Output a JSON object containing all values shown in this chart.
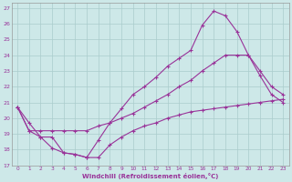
{
  "xlabel": "Windchill (Refroidissement éolien,°C)",
  "bg_color": "#cde8e8",
  "line_color": "#993399",
  "grid_color": "#aacccc",
  "xlim_min": -0.5,
  "xlim_max": 23.5,
  "ylim_min": 17,
  "ylim_max": 27.3,
  "xticks": [
    0,
    1,
    2,
    3,
    4,
    5,
    6,
    7,
    8,
    9,
    10,
    11,
    12,
    13,
    14,
    15,
    16,
    17,
    18,
    19,
    20,
    21,
    22,
    23
  ],
  "yticks": [
    17,
    18,
    19,
    20,
    21,
    22,
    23,
    24,
    25,
    26,
    27
  ],
  "line1_x": [
    0,
    1,
    2,
    3,
    4,
    5,
    6,
    7,
    8,
    9,
    10,
    11,
    12,
    13,
    14,
    15,
    16,
    17,
    18,
    19,
    20,
    21,
    22,
    23
  ],
  "line1_y": [
    20.7,
    19.7,
    18.8,
    18.1,
    17.8,
    17.7,
    17.5,
    18.6,
    19.7,
    20.6,
    21.5,
    22.0,
    22.6,
    23.3,
    23.8,
    24.3,
    25.9,
    26.8,
    26.5,
    25.5,
    24.0,
    22.7,
    21.5,
    21.0
  ],
  "line2_x": [
    0,
    1,
    2,
    3,
    4,
    5,
    6,
    7,
    8,
    9,
    10,
    11,
    12,
    13,
    14,
    15,
    16,
    17,
    18,
    19,
    20,
    21,
    22,
    23
  ],
  "line2_y": [
    20.7,
    19.2,
    19.2,
    19.2,
    19.2,
    19.2,
    19.2,
    19.5,
    19.7,
    20.0,
    20.3,
    20.7,
    21.1,
    21.5,
    22.0,
    22.4,
    23.0,
    23.5,
    24.0,
    24.0,
    24.0,
    23.0,
    22.0,
    21.5
  ],
  "line3_x": [
    0,
    1,
    2,
    3,
    4,
    5,
    6,
    7,
    8,
    9,
    10,
    11,
    12,
    13,
    14,
    15,
    16,
    17,
    18,
    19,
    20,
    21,
    22,
    23
  ],
  "line3_y": [
    20.7,
    19.2,
    18.8,
    18.8,
    17.8,
    17.7,
    17.5,
    17.5,
    18.3,
    18.8,
    19.2,
    19.5,
    19.7,
    20.0,
    20.2,
    20.4,
    20.5,
    20.6,
    20.7,
    20.8,
    20.9,
    21.0,
    21.1,
    21.2
  ]
}
